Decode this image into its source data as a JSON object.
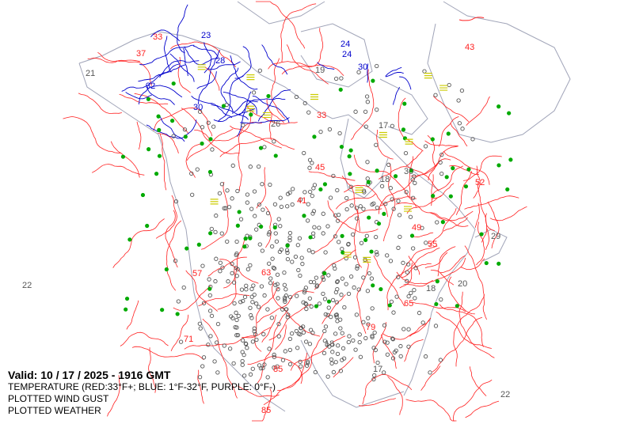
{
  "legend": {
    "valid": "Valid: 10 / 17 / 2025  -  1916 GMT",
    "temperature": "TEMPERATURE (RED:33°F+; BLUE: 1°F-32°F, PURPLE: 0°F-)",
    "wind_gust": "PLOTTED WIND GUST",
    "weather": "PLOTTED WEATHER"
  },
  "colors": {
    "warm_contour": "#ff2020",
    "cool_contour": "#0000cc",
    "cold_contour": "#9900cc",
    "coastline": "#a0a4b8",
    "station": "#555555",
    "precip_dot": "#00aa00",
    "fog_symbol": "#cccc00"
  },
  "labels": [
    {
      "text": "21",
      "color": "#555"
    },
    {
      "text": "33",
      "color": "#ff2020"
    },
    {
      "text": "23",
      "color": "#0000cc"
    },
    {
      "text": "37",
      "color": "#ff2020"
    },
    {
      "text": "32",
      "color": "#0000cc"
    },
    {
      "text": "30",
      "color": "#0000cc"
    },
    {
      "text": "28",
      "color": "#0000cc"
    },
    {
      "text": "26",
      "color": "#555"
    },
    {
      "text": "19",
      "color": "#555"
    },
    {
      "text": "30",
      "color": "#0000cc"
    },
    {
      "text": "24",
      "color": "#0000cc"
    },
    {
      "text": "43",
      "color": "#ff2020"
    },
    {
      "text": "33",
      "color": "#ff2020"
    },
    {
      "text": "17",
      "color": "#555"
    },
    {
      "text": "30",
      "color": "#555"
    },
    {
      "text": "18",
      "color": "#555"
    },
    {
      "text": "45",
      "color": "#ff2020"
    },
    {
      "text": "41",
      "color": "#ff2020"
    },
    {
      "text": "55",
      "color": "#ff2020"
    },
    {
      "text": "29",
      "color": "#555"
    },
    {
      "text": "22",
      "color": "#555"
    },
    {
      "text": "57",
      "color": "#ff2020"
    },
    {
      "text": "65",
      "color": "#ff2020"
    },
    {
      "text": "71",
      "color": "#ff2020"
    },
    {
      "text": "79",
      "color": "#ff2020"
    },
    {
      "text": "85",
      "color": "#ff2020"
    },
    {
      "text": "85",
      "color": "#ff2020"
    },
    {
      "text": "18",
      "color": "#555"
    },
    {
      "text": "17",
      "color": "#555"
    },
    {
      "text": "22",
      "color": "#555"
    },
    {
      "text": "20",
      "color": "#555"
    },
    {
      "text": "18",
      "color": "#555"
    },
    {
      "text": "49",
      "color": "#ff2020"
    },
    {
      "text": "63",
      "color": "#ff2020"
    },
    {
      "text": "52",
      "color": "#ff2020"
    },
    {
      "text": "24",
      "color": "#0000cc"
    }
  ]
}
